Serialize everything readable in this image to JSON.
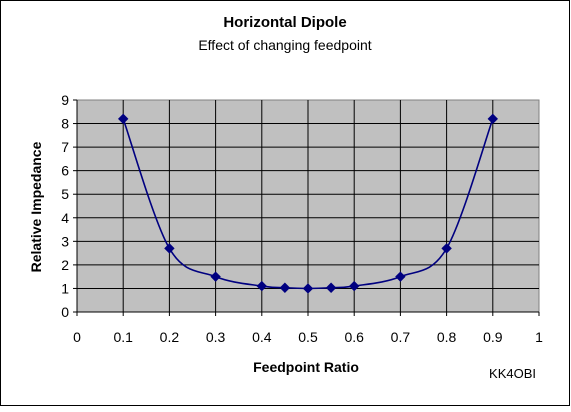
{
  "chart_data": {
    "type": "scatter",
    "title": "Horizontal Dipole",
    "subtitle": "Effect of changing feedpoint",
    "xlabel": "Feedpoint Ratio",
    "ylabel": "Relative Impedance",
    "credit": "KK4OBI",
    "xlim": [
      0,
      1
    ],
    "ylim": [
      0,
      9
    ],
    "xticks": [
      "0",
      "0.1",
      "0.2",
      "0.3",
      "0.4",
      "0.5",
      "0.6",
      "0.7",
      "0.8",
      "0.9",
      "1"
    ],
    "yticks": [
      "0",
      "1",
      "2",
      "3",
      "4",
      "5",
      "6",
      "7",
      "8",
      "9"
    ],
    "grid": true,
    "plot_background": "#c0c0c0",
    "series_color": "#000080",
    "series": [
      {
        "x": [
          0.1,
          0.2,
          0.3,
          0.4,
          0.45,
          0.5,
          0.55,
          0.6,
          0.7,
          0.8,
          0.9
        ],
        "y": [
          8.2,
          2.7,
          1.5,
          1.1,
          1.03,
          1.0,
          1.03,
          1.1,
          1.5,
          2.7,
          8.2
        ]
      }
    ]
  }
}
